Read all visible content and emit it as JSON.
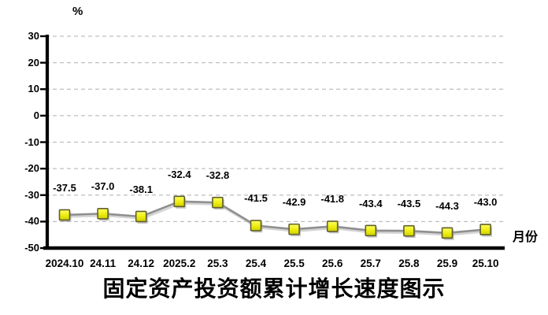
{
  "unit_labels": {
    "y": "%",
    "x": "月份"
  },
  "chart_data": {
    "type": "line",
    "title": "固定资产投资额累计增长速度图示",
    "categories": [
      "2024.10",
      "24.11",
      "24.12",
      "2025.2",
      "25.3",
      "25.4",
      "25.5",
      "25.6",
      "25.7",
      "25.8",
      "25.9",
      "25.10"
    ],
    "values": [
      -37.5,
      -37.0,
      -38.1,
      -32.4,
      -32.8,
      -41.5,
      -42.9,
      -41.8,
      -43.4,
      -43.5,
      -44.3,
      -43.0
    ],
    "data_labels": [
      "-37.5",
      "-37.0",
      "-38.1",
      "-32.4",
      "-32.8",
      "-41.5",
      "-42.9",
      "-41.8",
      "-43.4",
      "-43.5",
      "-44.3",
      "-43.0"
    ],
    "xlabel": "月份",
    "ylabel": "%",
    "ylim": [
      -50,
      30
    ],
    "y_ticks": [
      30,
      20,
      10,
      0,
      -10,
      -20,
      -30,
      -40,
      -50
    ],
    "grid": true,
    "legend": false,
    "colors": {
      "line": "#8f8f8f",
      "line_shadow": "#c9c9c9",
      "marker_fill_light": "#ffff5e",
      "marker_fill_mid": "#eded10",
      "marker_fill_dark": "#cfcf00",
      "marker_border": "#5f5f2e",
      "marker_shadow": "#9a9a9a",
      "gridline": "#bfbfbf",
      "axis": "#000000",
      "text": "#000000"
    }
  }
}
